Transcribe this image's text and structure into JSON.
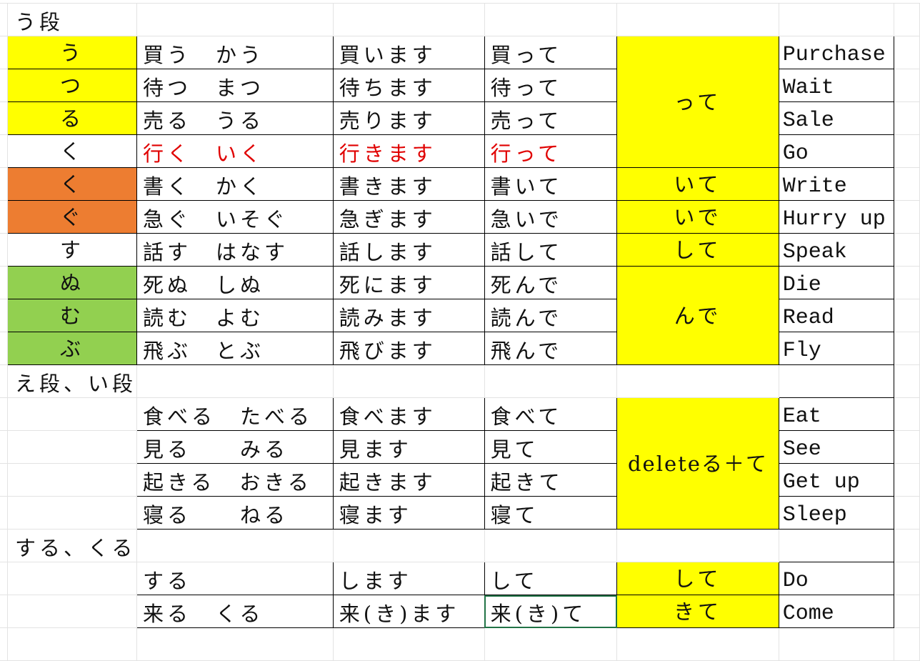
{
  "colors": {
    "yellow": "#ffff00",
    "orange": "#ed7d31",
    "green": "#92d050",
    "red_text": "#e00000",
    "selection": "#217346"
  },
  "sections": [
    {
      "title": "う段",
      "rows": [
        {
          "ending": "う",
          "dict": "買う　かう",
          "masu": "買います",
          "te": "買って",
          "group": "って",
          "english": "Purchase"
        },
        {
          "ending": "つ",
          "dict": "待つ　まつ",
          "masu": "待ちます",
          "te": "待って",
          "english": "Wait"
        },
        {
          "ending": "る",
          "dict": "売る　うる",
          "masu": "売ります",
          "te": "売って",
          "english": "Sale"
        },
        {
          "ending": "く",
          "dict": "行く　いく",
          "masu": "行きます",
          "te": "行って",
          "english": "Go"
        },
        {
          "ending": "く",
          "dict": "書く　かく",
          "masu": "書きます",
          "te": "書いて",
          "group": "いて",
          "english": "Write"
        },
        {
          "ending": "ぐ",
          "dict": "急ぐ　いそぐ",
          "masu": "急ぎます",
          "te": "急いで",
          "group": "いで",
          "english": "Hurry up"
        },
        {
          "ending": "す",
          "dict": "話す　はなす",
          "masu": "話します",
          "te": "話して",
          "group": "して",
          "english": "Speak"
        },
        {
          "ending": "ぬ",
          "dict": "死ぬ　しぬ",
          "masu": "死にます",
          "te": "死んで",
          "group": "んで",
          "english": "Die"
        },
        {
          "ending": "む",
          "dict": "読む　よむ",
          "masu": "読みます",
          "te": "読んで",
          "english": "Read"
        },
        {
          "ending": "ぶ",
          "dict": "飛ぶ　とぶ",
          "masu": "飛びます",
          "te": "飛んで",
          "english": "Fly"
        }
      ]
    },
    {
      "title": "え段、い段",
      "rows": [
        {
          "dict": "食べる　たべる",
          "masu": "食べます",
          "te": "食べて",
          "group": "deleteる＋て",
          "english": "Eat"
        },
        {
          "dict": "見る　　みる",
          "masu": "見ます",
          "te": "見て",
          "english": "See"
        },
        {
          "dict": "起きる　おきる",
          "masu": "起きます",
          "te": "起きて",
          "english": "Get up"
        },
        {
          "dict": "寝る　　ねる",
          "masu": "寝ます",
          "te": "寝て",
          "english": "Sleep"
        }
      ]
    },
    {
      "title": "する、くる",
      "rows": [
        {
          "dict": "する",
          "masu": "します",
          "te": "して",
          "group": "して",
          "english": "Do"
        },
        {
          "dict": "来る　くる",
          "masu": "来(き)ます",
          "te": "来(き)て",
          "group": "きて",
          "english": "Come"
        }
      ]
    }
  ]
}
